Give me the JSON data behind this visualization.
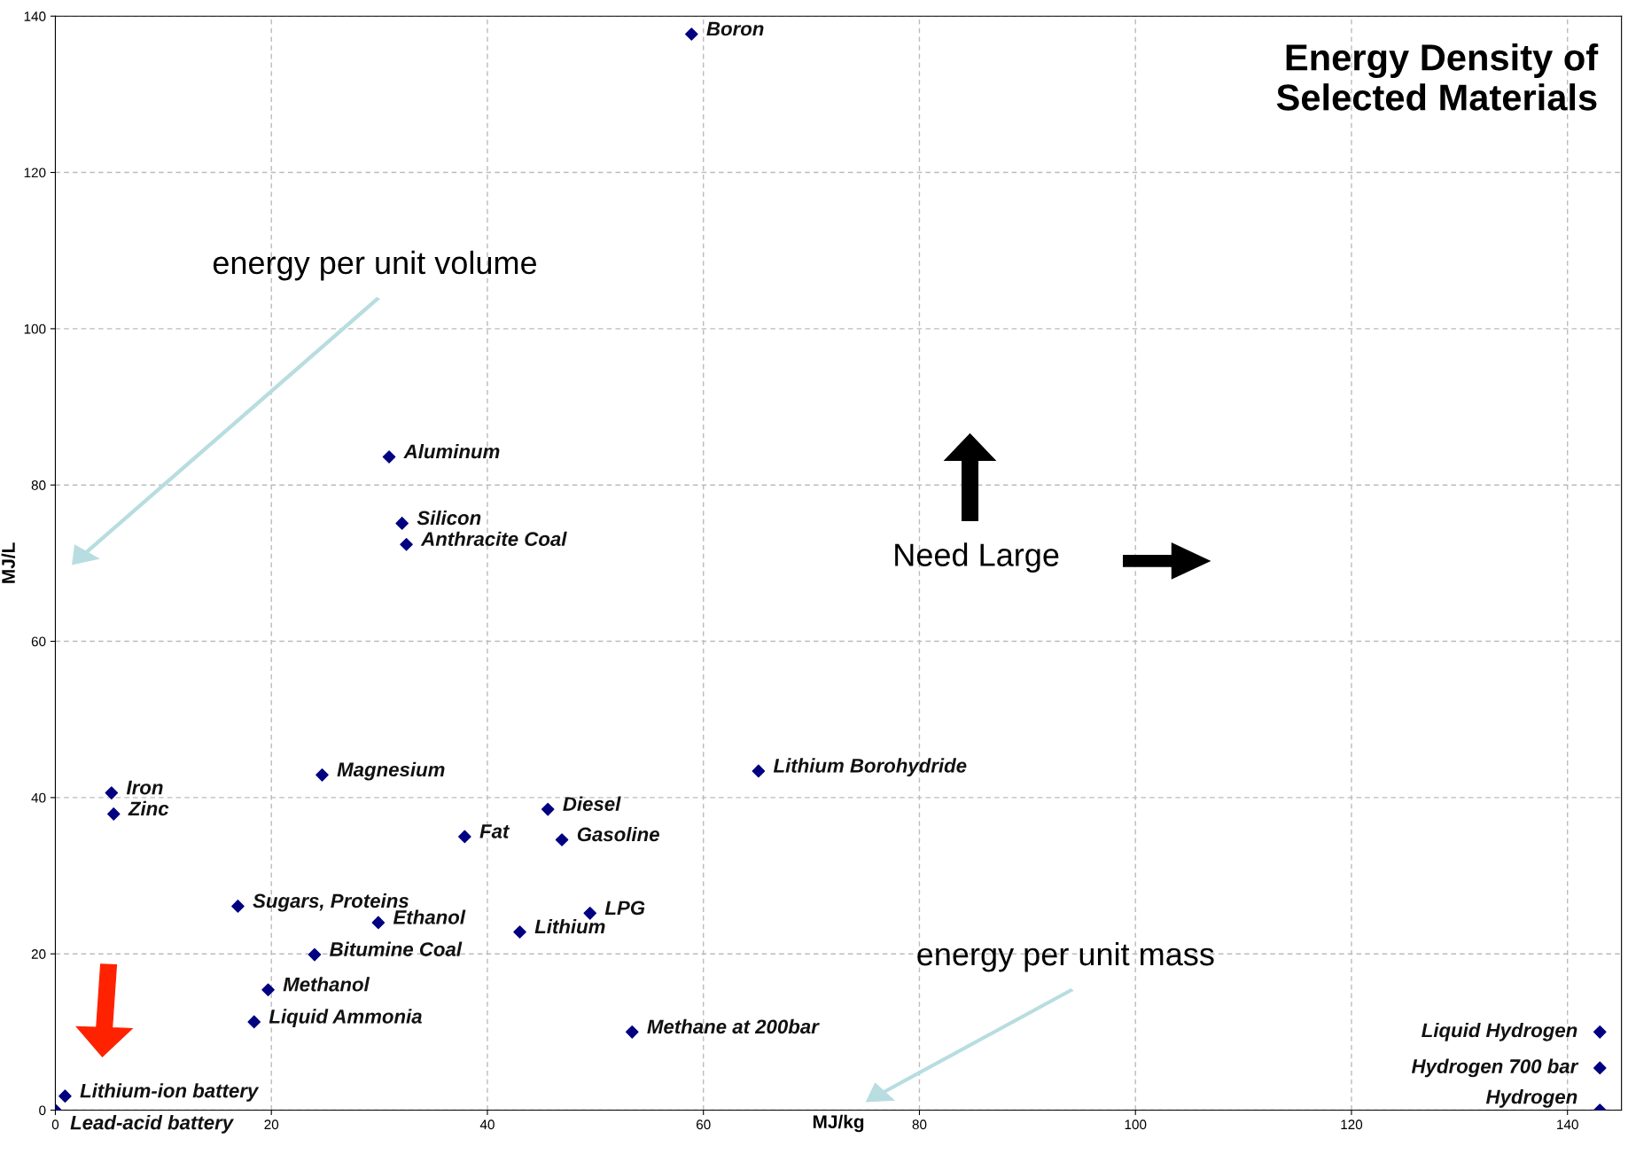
{
  "chart_data": {
    "type": "scatter",
    "title": "Energy Density of\nSelected Materials",
    "xlabel": "MJ/kg",
    "ylabel": "MJ/L",
    "xlim": [
      0,
      145
    ],
    "ylim": [
      0,
      140
    ],
    "xticks": [
      0,
      20,
      40,
      60,
      80,
      100,
      120,
      140
    ],
    "yticks": [
      0,
      20,
      40,
      60,
      80,
      100,
      120,
      140
    ],
    "grid": true,
    "marker": "diamond",
    "series": [
      {
        "color": "#000080",
        "x": [
          58.9,
          30.9,
          32.1,
          32.5,
          5.2,
          5.4,
          24.7,
          65.1,
          45.6,
          37.9,
          46.9,
          16.9,
          29.9,
          49.5,
          43.0,
          24.0,
          19.7,
          18.4,
          53.4,
          0.9,
          0.0,
          143,
          143,
          143
        ],
        "values": [
          137.7,
          83.6,
          75.1,
          72.4,
          40.6,
          37.9,
          42.9,
          43.4,
          38.5,
          35.0,
          34.6,
          26.1,
          24.0,
          25.2,
          22.8,
          19.9,
          15.4,
          11.3,
          10.0,
          1.8,
          0.0,
          10.0,
          5.4,
          0.0
        ]
      }
    ],
    "annotations": [
      {
        "text": "Boron",
        "x": 58.9,
        "y": 137.7
      },
      {
        "text": "Aluminum",
        "x": 30.9,
        "y": 83.6
      },
      {
        "text": "Silicon",
        "x": 32.1,
        "y": 75.1
      },
      {
        "text": "Anthracite Coal",
        "x": 32.5,
        "y": 72.4
      },
      {
        "text": "Iron",
        "x": 5.2,
        "y": 40.6
      },
      {
        "text": "Zinc",
        "x": 5.4,
        "y": 37.9
      },
      {
        "text": "Magnesium",
        "x": 24.7,
        "y": 42.9
      },
      {
        "text": "Lithium Borohydride",
        "x": 65.1,
        "y": 43.4
      },
      {
        "text": "Diesel",
        "x": 45.6,
        "y": 38.5
      },
      {
        "text": "Fat",
        "x": 37.9,
        "y": 35.0
      },
      {
        "text": "Gasoline",
        "x": 46.9,
        "y": 34.6
      },
      {
        "text": "Sugars, Proteins",
        "x": 16.9,
        "y": 26.1
      },
      {
        "text": "Ethanol",
        "x": 29.9,
        "y": 24.0
      },
      {
        "text": "LPG",
        "x": 49.5,
        "y": 25.2
      },
      {
        "text": "Lithium",
        "x": 43.0,
        "y": 22.8
      },
      {
        "text": "Bitumine Coal",
        "x": 24.0,
        "y": 19.9
      },
      {
        "text": "Methanol",
        "x": 19.7,
        "y": 15.4
      },
      {
        "text": "Liquid Ammonia",
        "x": 18.4,
        "y": 11.3
      },
      {
        "text": "Methane at 200bar",
        "x": 53.4,
        "y": 10.0
      },
      {
        "text": "Lithium-ion battery",
        "x": 0.9,
        "y": 1.8
      },
      {
        "text": "Lead-acid battery",
        "x": 0.0,
        "y": 0.0
      },
      {
        "text": "Liquid Hydrogen",
        "x": 143,
        "y": 10.0
      },
      {
        "text": "Hydrogen 700 bar",
        "x": 143,
        "y": 5.4
      },
      {
        "text": "Hydrogen",
        "x": 143,
        "y": 0.0
      },
      "energy per unit volume",
      "Need Large",
      "energy per unit mass"
    ]
  }
}
